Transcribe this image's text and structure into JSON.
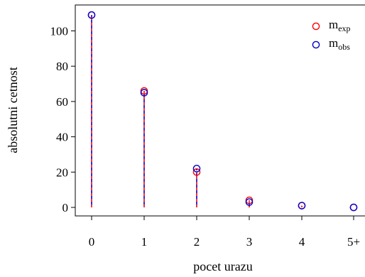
{
  "chart_data": {
    "type": "scatter",
    "title": "",
    "xlabel": "pocet urazu",
    "ylabel": "absolutni cetnost",
    "categories": [
      "0",
      "1",
      "2",
      "3",
      "4",
      "5+"
    ],
    "ylim": [
      0,
      110
    ],
    "yticks": [
      0,
      20,
      40,
      60,
      80,
      100
    ],
    "grid": false,
    "legend_position": "top-right",
    "series": [
      {
        "name": "m",
        "subscript": "exp",
        "color": "#ff0000",
        "line_style": "dashed",
        "values": [
          109,
          66,
          20,
          4,
          1,
          0
        ]
      },
      {
        "name": "m",
        "subscript": "obs",
        "color": "#0000cc",
        "line_style": "dashed",
        "values": [
          109,
          65,
          22,
          3,
          1,
          0
        ]
      }
    ]
  }
}
